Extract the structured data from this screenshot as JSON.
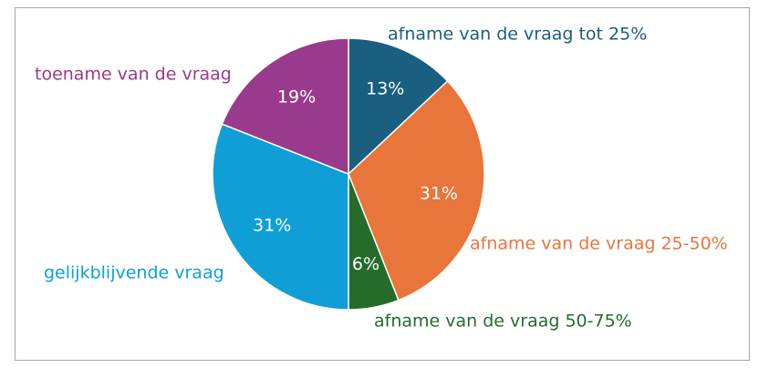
{
  "chart_data": {
    "type": "pie",
    "categories": [
      "afname van de vraag tot 25%",
      "afname van de vraag 25-50%",
      "afname van de vraag 50-75%",
      "gelijkblijvende vraag",
      "toename van de vraag"
    ],
    "values": [
      13,
      31,
      6,
      31,
      19
    ],
    "value_labels": [
      "13%",
      "31%",
      "6%",
      "31%",
      "19%"
    ],
    "colors": [
      "#1a5e80",
      "#e8753a",
      "#246b2c",
      "#0f9fd6",
      "#993a8c"
    ]
  }
}
